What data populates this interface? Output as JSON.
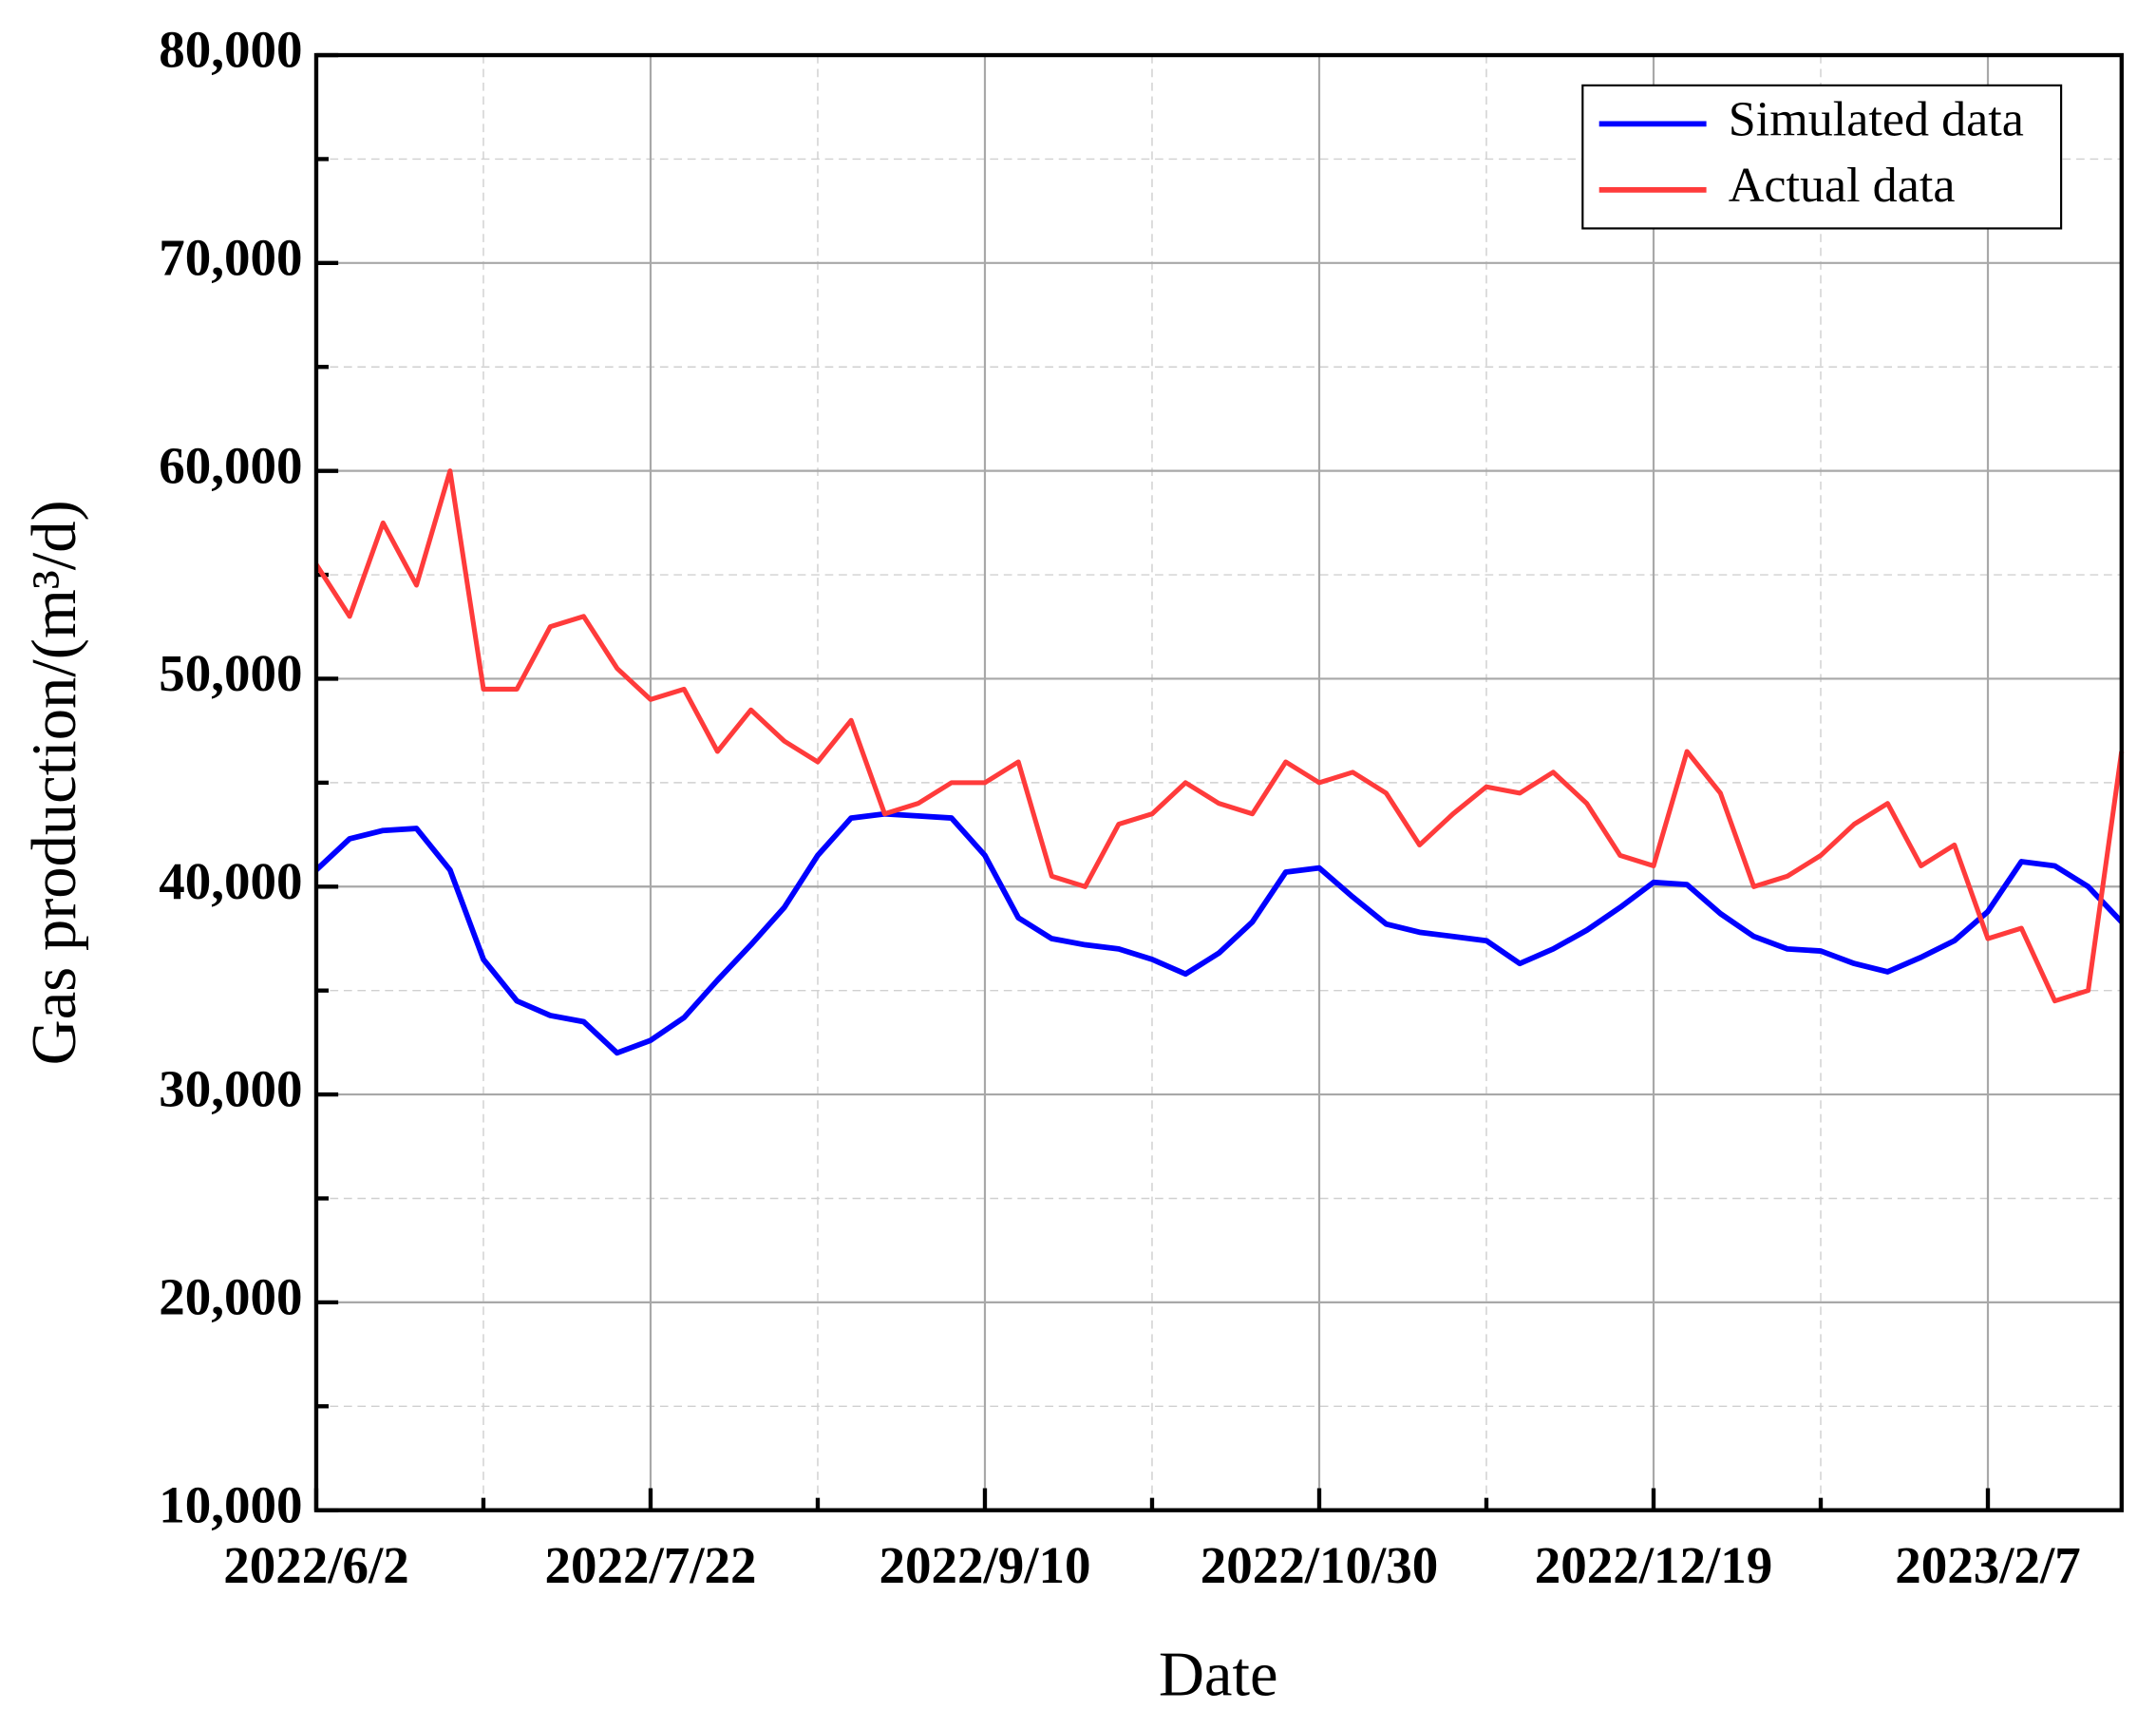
{
  "chart_data": {
    "type": "line",
    "x_label": "Date",
    "y_label": "Gas production/(m³/d)",
    "x": [
      "2022/6/2",
      "2022/6/7",
      "2022/6/12",
      "2022/6/17",
      "2022/6/22",
      "2022/6/27",
      "2022/7/2",
      "2022/7/7",
      "2022/7/12",
      "2022/7/17",
      "2022/7/22",
      "2022/7/27",
      "2022/8/1",
      "2022/8/6",
      "2022/8/11",
      "2022/8/16",
      "2022/8/21",
      "2022/8/26",
      "2022/8/31",
      "2022/9/5",
      "2022/9/10",
      "2022/9/15",
      "2022/9/20",
      "2022/9/25",
      "2022/9/30",
      "2022/10/5",
      "2022/10/10",
      "2022/10/15",
      "2022/10/20",
      "2022/10/25",
      "2022/10/30",
      "2022/11/4",
      "2022/11/9",
      "2022/11/14",
      "2022/11/19",
      "2022/11/24",
      "2022/11/29",
      "2022/12/4",
      "2022/12/9",
      "2022/12/14",
      "2022/12/19",
      "2022/12/24",
      "2022/12/29",
      "2023/1/3",
      "2023/1/8",
      "2023/1/13",
      "2023/1/18",
      "2023/1/23",
      "2023/1/28",
      "2023/2/2",
      "2023/2/7",
      "2023/2/12",
      "2023/2/17",
      "2023/2/22",
      "2023/2/27"
    ],
    "series": [
      {
        "name": "Simulated data",
        "color": "#0000ff",
        "values": [
          40800,
          42300,
          42700,
          42800,
          40800,
          36500,
          34500,
          33800,
          33500,
          32000,
          32600,
          33700,
          35500,
          37200,
          39000,
          41500,
          43300,
          43500,
          43400,
          43300,
          41500,
          38500,
          37500,
          37200,
          37000,
          36500,
          35800,
          36800,
          38300,
          40700,
          40900,
          39500,
          38200,
          37800,
          37600,
          37400,
          36300,
          37000,
          37900,
          39000,
          40200,
          40100,
          38700,
          37600,
          37000,
          36900,
          36300,
          35900,
          36600,
          37400,
          38800,
          41200,
          41000,
          40000,
          38300
        ]
      },
      {
        "name": "Actual data",
        "color": "#ff3b3b",
        "values": [
          55500,
          53000,
          57500,
          54500,
          60000,
          49500,
          49500,
          52500,
          53000,
          50500,
          49000,
          49500,
          46500,
          48500,
          47000,
          46000,
          48000,
          43500,
          44000,
          45000,
          45000,
          46000,
          40500,
          40000,
          43000,
          43500,
          45000,
          44000,
          43500,
          46000,
          45000,
          45500,
          44500,
          42000,
          43500,
          44800,
          44500,
          45500,
          44000,
          41500,
          41000,
          46500,
          44500,
          40000,
          40500,
          41500,
          43000,
          44000,
          41000,
          42000,
          37500,
          38000,
          34500,
          35000,
          46500
        ]
      }
    ],
    "xlim": [
      "2022/6/2",
      "2023/2/27"
    ],
    "xticks": [
      "2022/6/2",
      "2022/7/22",
      "2022/9/10",
      "2022/10/30",
      "2022/12/19",
      "2023/2/7"
    ],
    "ylim": [
      10000,
      80000
    ],
    "yticks": [
      {
        "value": 10000,
        "label": "10,000"
      },
      {
        "value": 20000,
        "label": "20,000"
      },
      {
        "value": 30000,
        "label": "30,000"
      },
      {
        "value": 40000,
        "label": "40,000"
      },
      {
        "value": 50000,
        "label": "50,000"
      },
      {
        "value": 60000,
        "label": "60,000"
      },
      {
        "value": 70000,
        "label": "70,000"
      },
      {
        "value": 80000,
        "label": "80,000"
      }
    ],
    "grid": true,
    "legend": "upper right"
  }
}
